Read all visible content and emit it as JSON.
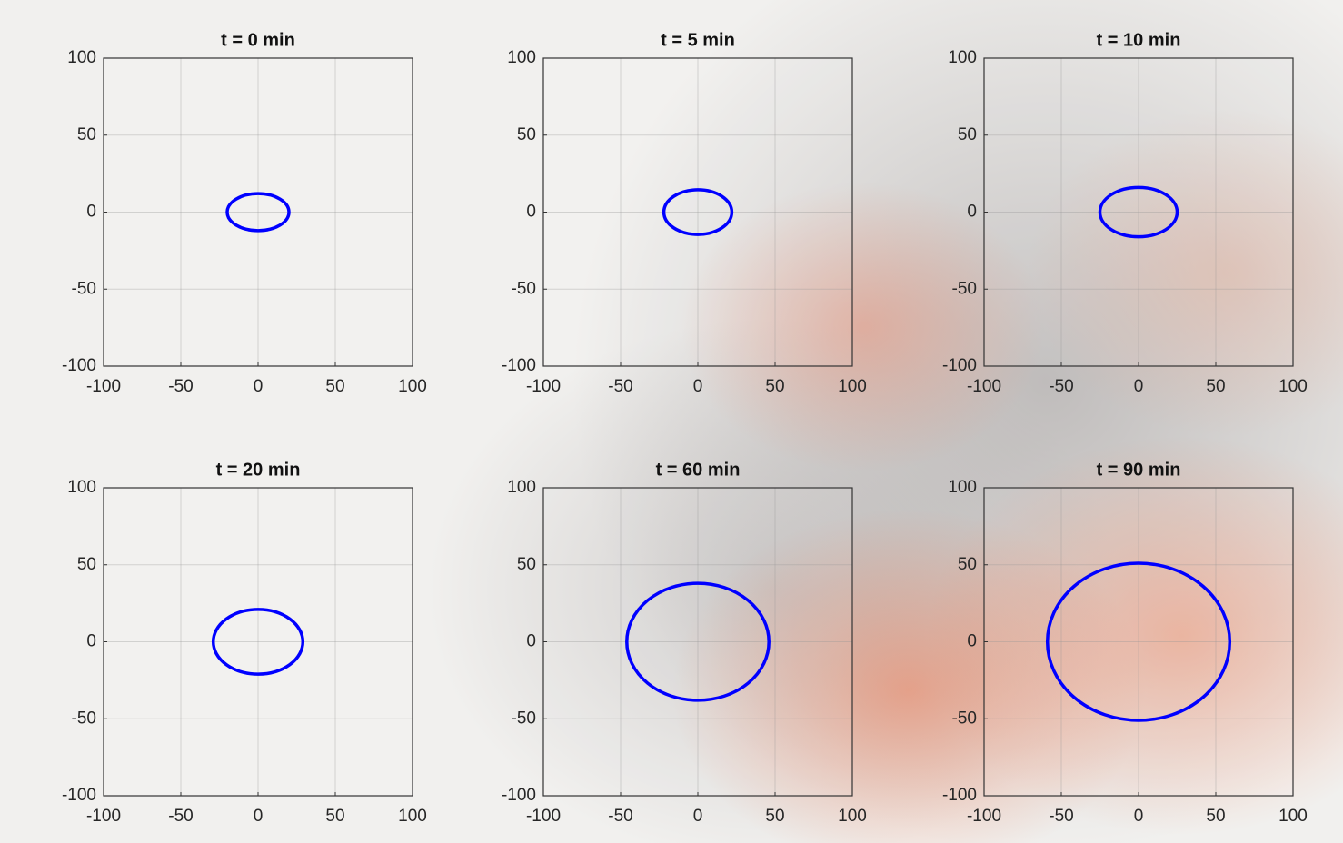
{
  "chart_data": [
    {
      "type": "ellipse",
      "title": "t = 0 min",
      "xlim": [
        -100,
        100
      ],
      "ylim": [
        -100,
        100
      ],
      "xticks": [
        -100,
        -50,
        0,
        50,
        100
      ],
      "yticks": [
        -100,
        -50,
        0,
        50,
        100
      ],
      "grid": true,
      "ellipse": {
        "color": "#0000ff",
        "center_x": 0,
        "center_y": 0,
        "semi_x": 20,
        "semi_y": 12
      }
    },
    {
      "type": "ellipse",
      "title": "t = 5 min",
      "xlim": [
        -100,
        100
      ],
      "ylim": [
        -100,
        100
      ],
      "xticks": [
        -100,
        -50,
        0,
        50,
        100
      ],
      "yticks": [
        -100,
        -50,
        0,
        50,
        100
      ],
      "grid": true,
      "ellipse": {
        "color": "#0000ff",
        "center_x": 0,
        "center_y": 0,
        "semi_x": 22,
        "semi_y": 14.5
      }
    },
    {
      "type": "ellipse",
      "title": "t = 10 min",
      "xlim": [
        -100,
        100
      ],
      "ylim": [
        -100,
        100
      ],
      "xticks": [
        -100,
        -50,
        0,
        50,
        100
      ],
      "yticks": [
        -100,
        -50,
        0,
        50,
        100
      ],
      "grid": true,
      "ellipse": {
        "color": "#0000ff",
        "center_x": 0,
        "center_y": 0,
        "semi_x": 25,
        "semi_y": 16
      }
    },
    {
      "type": "ellipse",
      "title": "t = 20 min",
      "xlim": [
        -100,
        100
      ],
      "ylim": [
        -100,
        100
      ],
      "xticks": [
        -100,
        -50,
        0,
        50,
        100
      ],
      "yticks": [
        -100,
        -50,
        0,
        50,
        100
      ],
      "grid": true,
      "ellipse": {
        "color": "#0000ff",
        "center_x": 0,
        "center_y": 0,
        "semi_x": 29,
        "semi_y": 21
      }
    },
    {
      "type": "ellipse",
      "title": "t = 60 min",
      "xlim": [
        -100,
        100
      ],
      "ylim": [
        -100,
        100
      ],
      "xticks": [
        -100,
        -50,
        0,
        50,
        100
      ],
      "yticks": [
        -100,
        -50,
        0,
        50,
        100
      ],
      "grid": true,
      "ellipse": {
        "color": "#0000ff",
        "center_x": 0,
        "center_y": 0,
        "semi_x": 46,
        "semi_y": 38
      }
    },
    {
      "type": "ellipse",
      "title": "t = 90 min",
      "xlim": [
        -100,
        100
      ],
      "ylim": [
        -100,
        100
      ],
      "xticks": [
        -100,
        -50,
        0,
        50,
        100
      ],
      "yticks": [
        -100,
        -50,
        0,
        50,
        100
      ],
      "grid": true,
      "ellipse": {
        "color": "#0000ff",
        "center_x": 0,
        "center_y": 0,
        "semi_x": 59,
        "semi_y": 51
      }
    }
  ]
}
